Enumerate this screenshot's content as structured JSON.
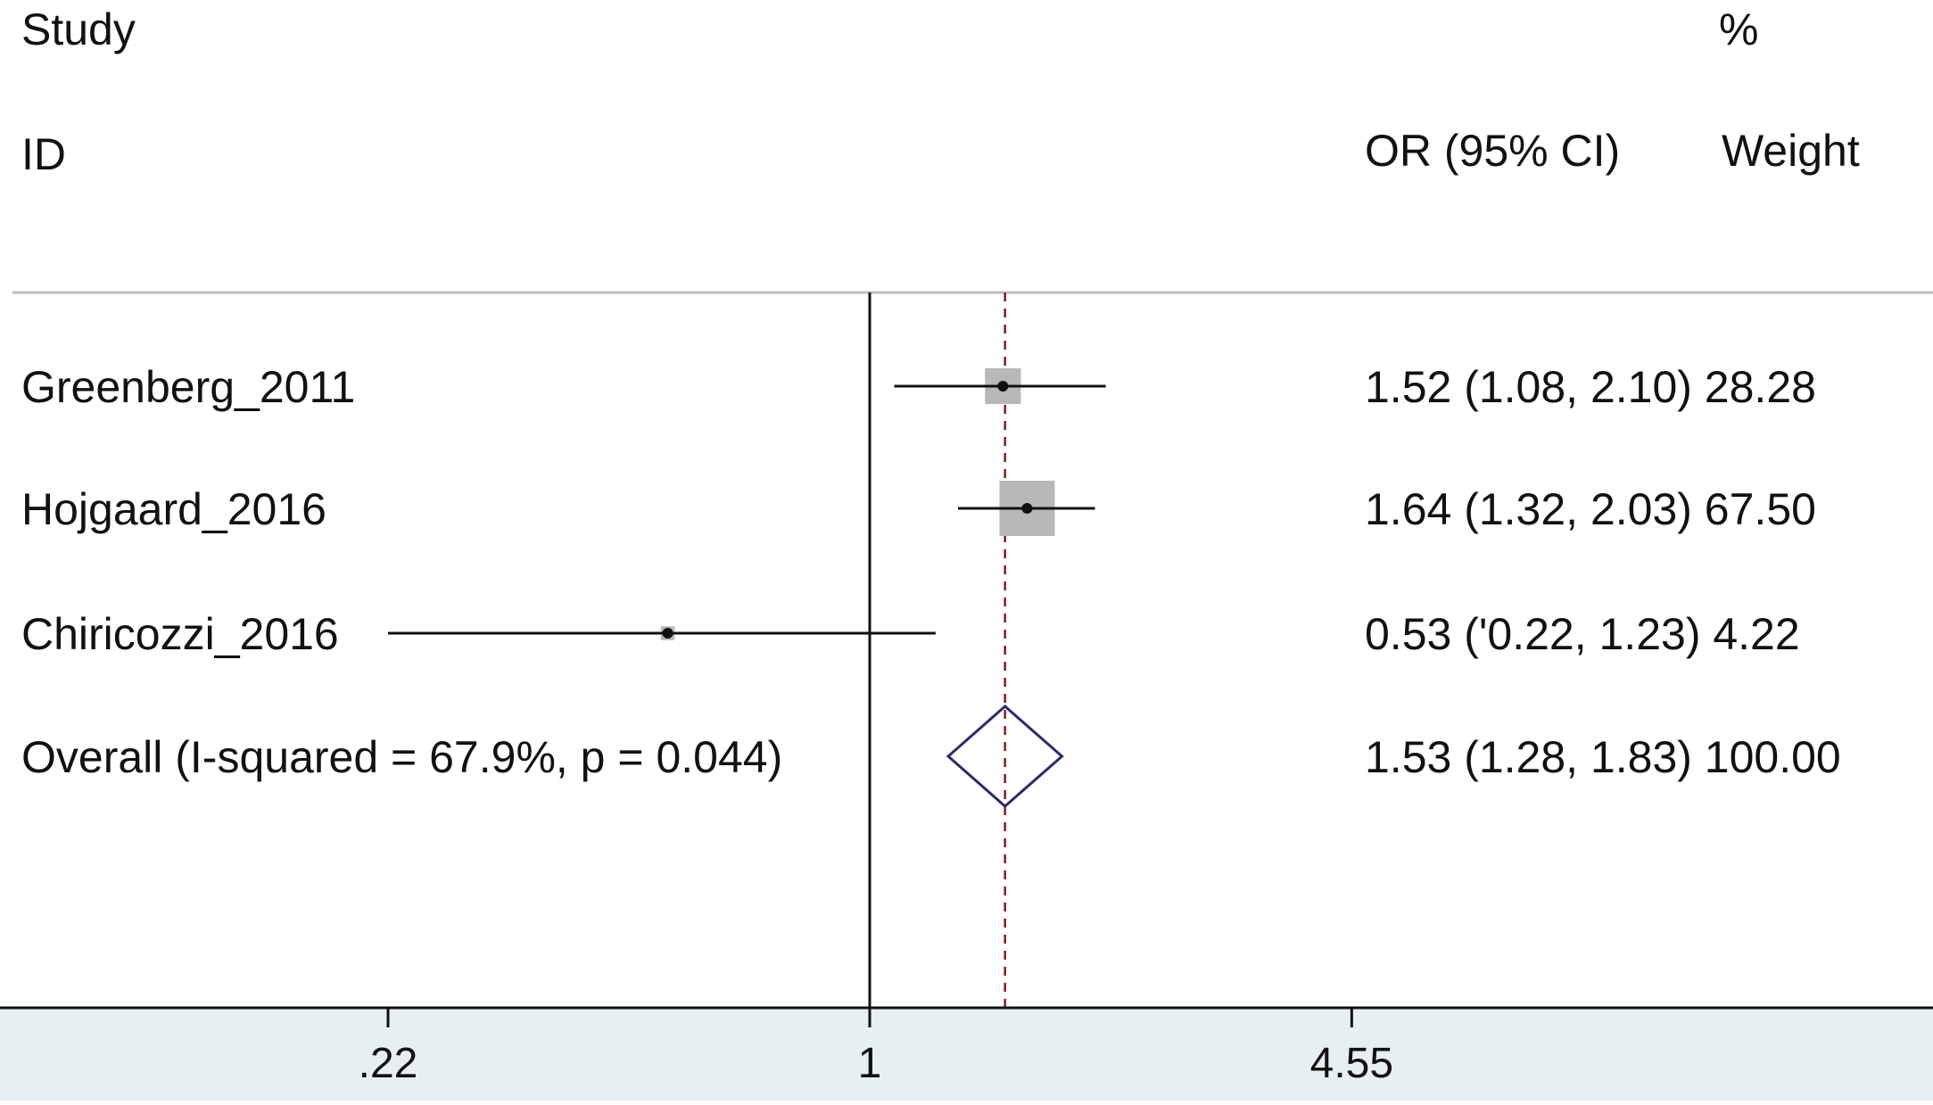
{
  "chart_data": {
    "type": "forest",
    "x_scale": "log",
    "x_ticks": [
      {
        "value": 0.22,
        "label": ".22"
      },
      {
        "value": 1,
        "label": "1"
      },
      {
        "value": 4.55,
        "label": "4.55"
      }
    ],
    "xlim": [
      0.22,
      4.55
    ],
    "null_line": 1,
    "pooled_line": 1.53,
    "headers": {
      "study_top": "Study",
      "study_bottom": "ID",
      "weight_top": "%",
      "or_ci": "OR (95% CI)",
      "weight": "Weight"
    },
    "studies": [
      {
        "label": "Greenberg_2011",
        "or": 1.52,
        "lo": 1.08,
        "hi": 2.1,
        "weight": 28.28,
        "text": "1.52 (1.08, 2.10) 28.28"
      },
      {
        "label": "Hojgaard_2016",
        "or": 1.64,
        "lo": 1.32,
        "hi": 2.03,
        "weight": 67.5,
        "text": "1.64 (1.32, 2.03) 67.50"
      },
      {
        "label": "Chiricozzi_2016",
        "or": 0.53,
        "lo": 0.22,
        "hi": 1.23,
        "weight": 4.22,
        "text": "0.53 ('0.22, 1.23) 4.22"
      }
    ],
    "overall": {
      "label": "Overall (I-squared = 67.9%, p = 0.044)",
      "or": 1.53,
      "lo": 1.28,
      "hi": 1.83,
      "weight": 100.0,
      "text": "1.53 (1.28, 1.83) 100.00"
    },
    "colors": {
      "axis": "#111111",
      "box": "#b8b8b8",
      "pooled_line": "#8b1a1a",
      "diamond": "#2a2a6e",
      "bottom_band": "#e6eff1"
    }
  }
}
